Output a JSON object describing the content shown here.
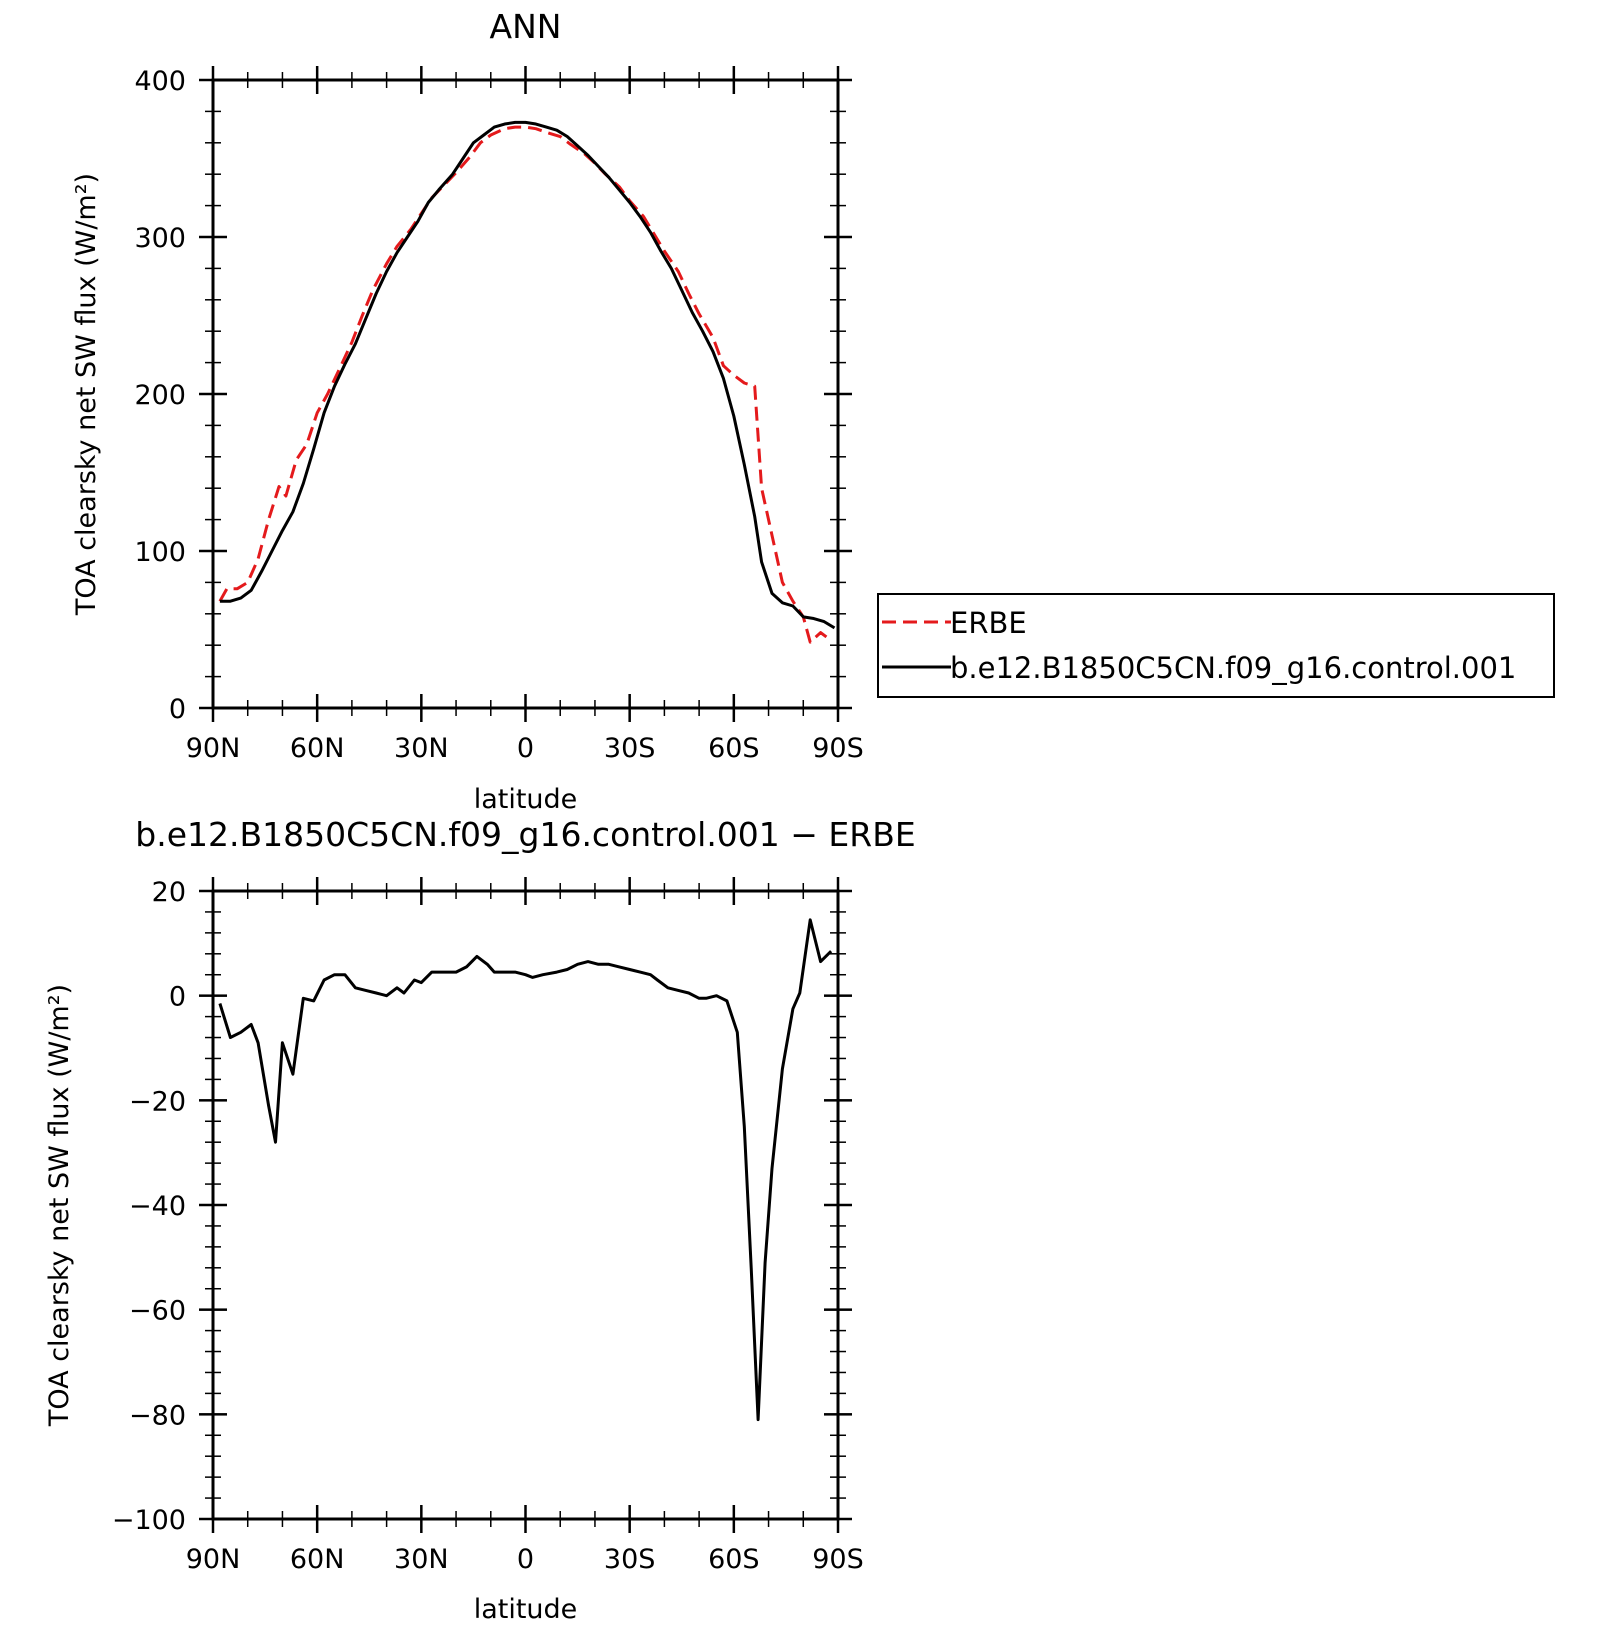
{
  "chart_data": [
    {
      "type": "line",
      "title": "ANN",
      "xlabel": "latitude",
      "ylabel": "TOA clearsky net SW flux (W/m²)",
      "xlim": [
        90,
        -90
      ],
      "ylim": [
        0,
        400
      ],
      "x_tick_labels": [
        "90N",
        "60N",
        "30N",
        "0",
        "30S",
        "60S",
        "90S"
      ],
      "y_tick_labels": [
        "0",
        "100",
        "200",
        "300",
        "400"
      ],
      "legend_position": "right",
      "series": [
        {
          "name": "ERBE",
          "color": "#e41a1c",
          "style": "dashed",
          "points": [
            [
              88,
              68
            ],
            [
              86,
              76
            ],
            [
              83,
              76
            ],
            [
              80,
              80
            ],
            [
              77,
              95
            ],
            [
              74,
              120
            ],
            [
              71,
              141
            ],
            [
              69,
              135
            ],
            [
              66,
              158
            ],
            [
              63,
              168
            ],
            [
              60,
              188
            ],
            [
              57,
              200
            ],
            [
              54,
              214
            ],
            [
              50,
              233
            ],
            [
              47,
              250
            ],
            [
              44,
              266
            ],
            [
              40,
              283
            ],
            [
              37,
              294
            ],
            [
              33,
              305
            ],
            [
              30,
              315
            ],
            [
              27,
              325
            ],
            [
              23,
              334
            ],
            [
              20,
              341
            ],
            [
              16,
              351
            ],
            [
              13,
              360
            ],
            [
              10,
              365
            ],
            [
              6,
              369
            ],
            [
              3,
              370
            ],
            [
              0,
              370
            ],
            [
              -3,
              369
            ],
            [
              -7,
              366
            ],
            [
              -10,
              364
            ],
            [
              -13,
              359
            ],
            [
              -17,
              353
            ],
            [
              -20,
              347
            ],
            [
              -23,
              340
            ],
            [
              -27,
              332
            ],
            [
              -30,
              323
            ],
            [
              -34,
              313
            ],
            [
              -37,
              302
            ],
            [
              -40,
              291
            ],
            [
              -44,
              278
            ],
            [
              -47,
              264
            ],
            [
              -50,
              251
            ],
            [
              -54,
              236
            ],
            [
              -57,
              218
            ],
            [
              -60,
              212
            ],
            [
              -63,
              207
            ],
            [
              -66,
              205
            ],
            [
              -68,
              140
            ],
            [
              -71,
              110
            ],
            [
              -74,
              80
            ],
            [
              -77,
              68
            ],
            [
              -80,
              58
            ],
            [
              -82,
              42
            ],
            [
              -85,
              48
            ],
            [
              -88,
              43
            ]
          ]
        },
        {
          "name": "b.e12.B1850C5CN.f09_g16.control.001",
          "color": "#000000",
          "style": "solid",
          "points": [
            [
              88,
              68
            ],
            [
              85,
              68
            ],
            [
              82,
              70
            ],
            [
              79,
              75
            ],
            [
              76,
              87
            ],
            [
              73,
              100
            ],
            [
              70,
              113
            ],
            [
              67,
              125
            ],
            [
              64,
              143
            ],
            [
              61,
              165
            ],
            [
              58,
              188
            ],
            [
              55,
              205
            ],
            [
              52,
              219
            ],
            [
              49,
              232
            ],
            [
              46,
              248
            ],
            [
              43,
              264
            ],
            [
              40,
              278
            ],
            [
              37,
              290
            ],
            [
              34,
              300
            ],
            [
              31,
              310
            ],
            [
              28,
              322
            ],
            [
              25,
              330
            ],
            [
              21,
              340
            ],
            [
              18,
              350
            ],
            [
              15,
              360
            ],
            [
              12,
              365
            ],
            [
              9,
              370
            ],
            [
              6,
              372
            ],
            [
              3,
              373
            ],
            [
              0,
              373
            ],
            [
              -3,
              372
            ],
            [
              -6,
              370
            ],
            [
              -9,
              368
            ],
            [
              -12,
              364
            ],
            [
              -15,
              358
            ],
            [
              -18,
              352
            ],
            [
              -21,
              345
            ],
            [
              -24,
              338
            ],
            [
              -27,
              330
            ],
            [
              -30,
              322
            ],
            [
              -33,
              313
            ],
            [
              -36,
              303
            ],
            [
              -39,
              291
            ],
            [
              -42,
              280
            ],
            [
              -45,
              266
            ],
            [
              -48,
              252
            ],
            [
              -51,
              240
            ],
            [
              -54,
              227
            ],
            [
              -57,
              210
            ],
            [
              -60,
              186
            ],
            [
              -63,
              155
            ],
            [
              -66,
              122
            ],
            [
              -68,
              93
            ],
            [
              -71,
              73
            ],
            [
              -74,
              67
            ],
            [
              -77,
              65
            ],
            [
              -80,
              58
            ],
            [
              -83,
              57
            ],
            [
              -86,
              55
            ],
            [
              -89,
              51
            ]
          ]
        }
      ]
    },
    {
      "type": "line",
      "title": "b.e12.B1850C5CN.f09_g16.control.001 − ERBE",
      "xlabel": "latitude",
      "ylabel": "TOA clearsky net SW flux (W/m²)",
      "xlim": [
        90,
        -90
      ],
      "ylim": [
        -100,
        20
      ],
      "x_tick_labels": [
        "90N",
        "60N",
        "30N",
        "0",
        "30S",
        "60S",
        "90S"
      ],
      "y_tick_labels": [
        "−100",
        "−80",
        "−60",
        "−40",
        "−20",
        "0",
        "20"
      ],
      "series": [
        {
          "color": "#000000",
          "style": "solid",
          "points": [
            [
              88,
              -1.5
            ],
            [
              85,
              -8
            ],
            [
              82,
              -7
            ],
            [
              79,
              -5.5
            ],
            [
              77,
              -9
            ],
            [
              74,
              -21
            ],
            [
              72,
              -28
            ],
            [
              70,
              -9
            ],
            [
              67,
              -15
            ],
            [
              64,
              -0.5
            ],
            [
              61,
              -1
            ],
            [
              58,
              3
            ],
            [
              55,
              4
            ],
            [
              52,
              4
            ],
            [
              49,
              1.5
            ],
            [
              46,
              1
            ],
            [
              43,
              0.5
            ],
            [
              40,
              0
            ],
            [
              37,
              1.5
            ],
            [
              35,
              0.5
            ],
            [
              32,
              3
            ],
            [
              30,
              2.5
            ],
            [
              27,
              4.5
            ],
            [
              23,
              4.5
            ],
            [
              20,
              4.5
            ],
            [
              17,
              5.5
            ],
            [
              14,
              7.5
            ],
            [
              11,
              6
            ],
            [
              9,
              4.5
            ],
            [
              6,
              4.5
            ],
            [
              3,
              4.5
            ],
            [
              0,
              4
            ],
            [
              -2,
              3.5
            ],
            [
              -5,
              4
            ],
            [
              -9,
              4.5
            ],
            [
              -12,
              5
            ],
            [
              -15,
              6
            ],
            [
              -18,
              6.5
            ],
            [
              -21,
              6
            ],
            [
              -24,
              6
            ],
            [
              -27,
              5.5
            ],
            [
              -30,
              5
            ],
            [
              -33,
              4.5
            ],
            [
              -36,
              4
            ],
            [
              -38,
              3
            ],
            [
              -41,
              1.5
            ],
            [
              -44,
              1
            ],
            [
              -47,
              0.5
            ],
            [
              -50,
              -0.5
            ],
            [
              -52,
              -0.5
            ],
            [
              -55,
              0
            ],
            [
              -58,
              -1
            ],
            [
              -61,
              -7
            ],
            [
              -63,
              -25
            ],
            [
              -65,
              -52
            ],
            [
              -67,
              -81
            ],
            [
              -69,
              -51
            ],
            [
              -71,
              -33
            ],
            [
              -74,
              -14
            ],
            [
              -77,
              -2.5
            ],
            [
              -79,
              0.5
            ],
            [
              -82,
              14.5
            ],
            [
              -85,
              6.5
            ],
            [
              -88,
              8.5
            ]
          ]
        }
      ]
    }
  ]
}
